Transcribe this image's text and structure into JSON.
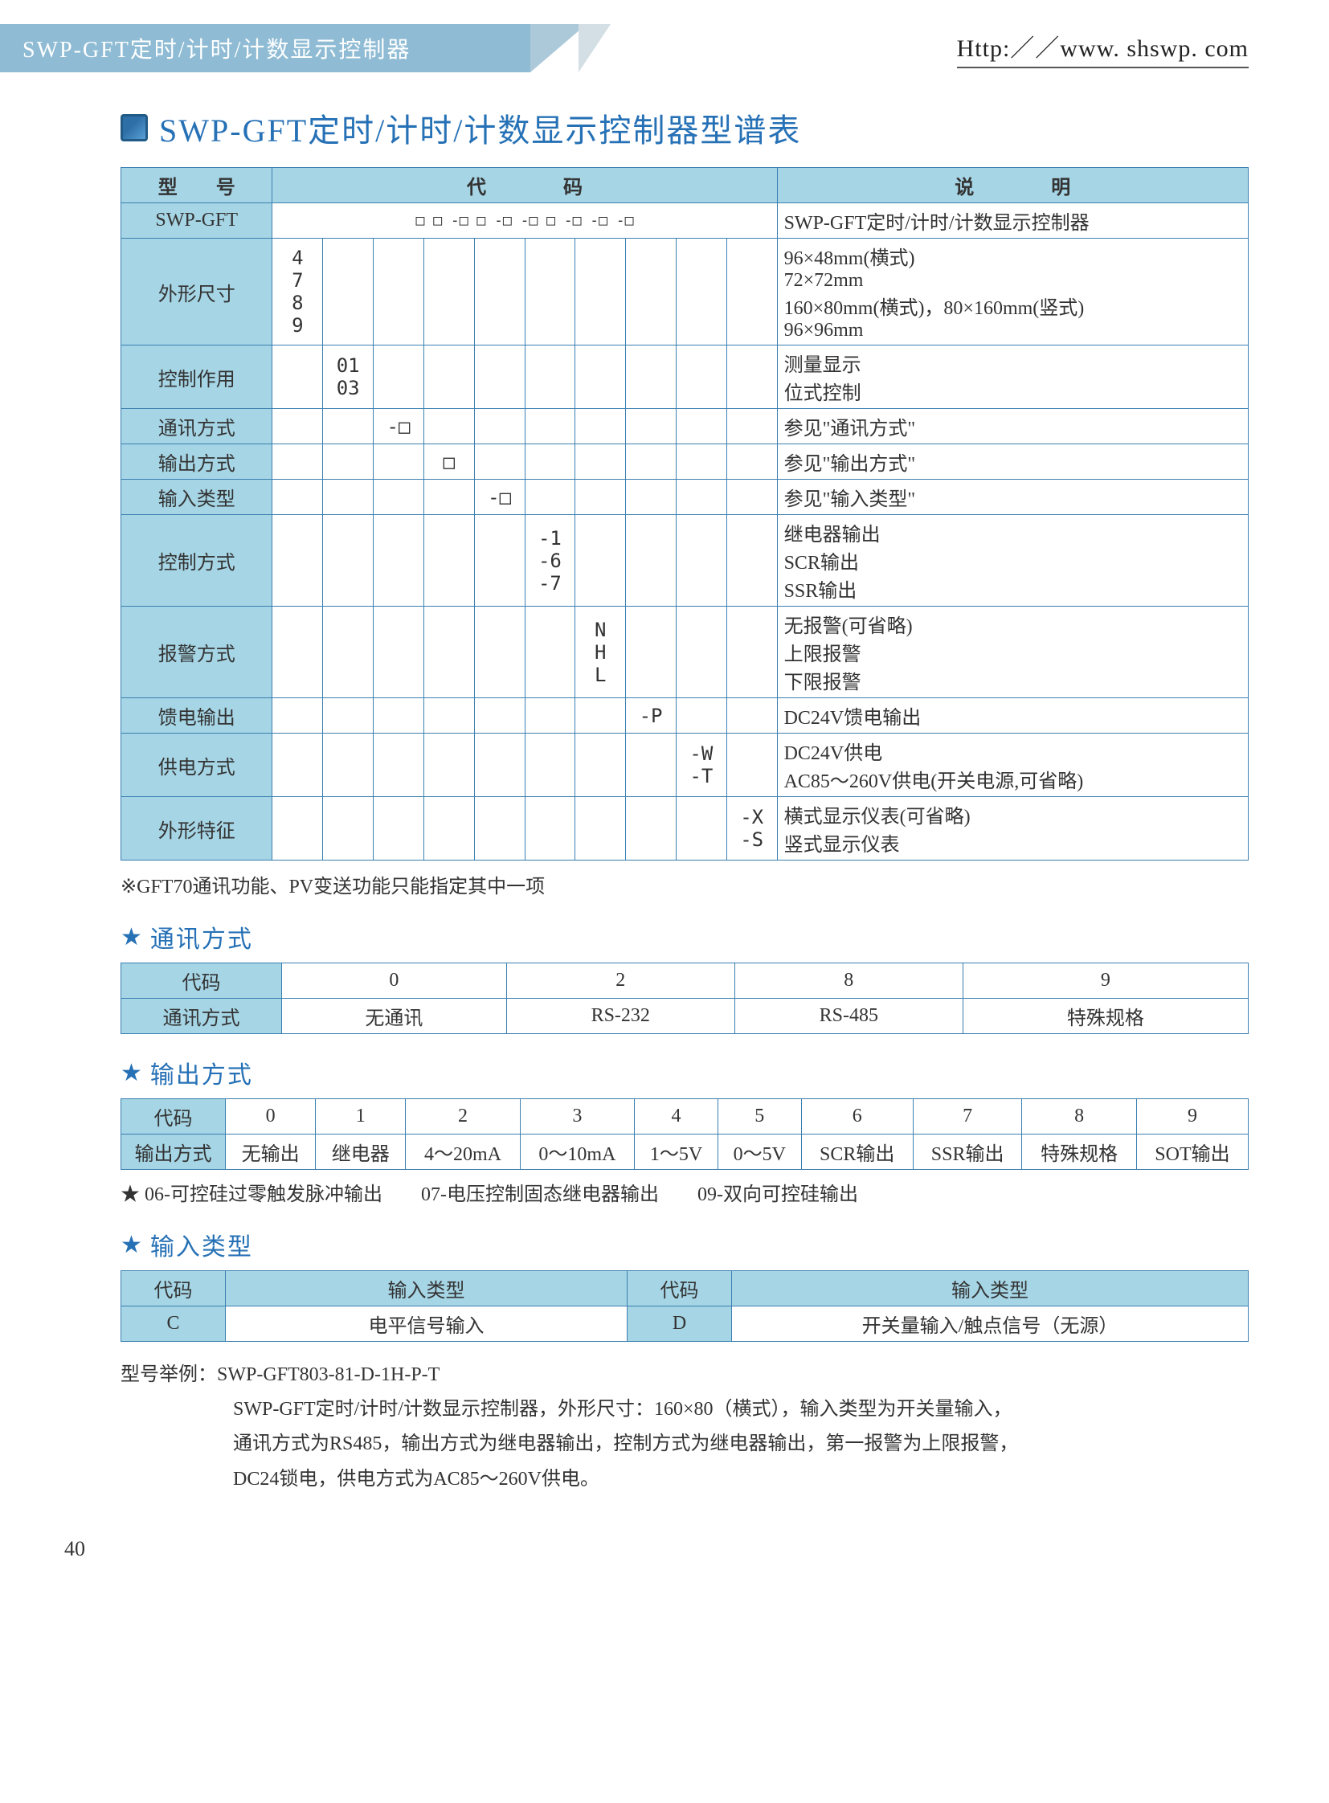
{
  "header": {
    "left_title": "SWP-GFT定时/计时/计数显示控制器",
    "url": "Http:／／www. shswp. com"
  },
  "title": "SWP-GFT定时/计时/计数显示控制器型谱表",
  "mainTable": {
    "headers": {
      "model": "型　　号",
      "code": "代　　　　码",
      "desc": "说　　　　明"
    },
    "model_row": {
      "label": "SWP-GFT",
      "markers": "□ □ -□ □ -□ -□ □ -□ -□ -□",
      "desc": "SWP-GFT定时/计时/计数显示控制器"
    },
    "rows": [
      {
        "label": "外形尺寸",
        "cols": [
          "4\n7\n8\n9",
          "",
          "",
          "",
          "",
          "",
          "",
          "",
          "",
          ""
        ],
        "desc": "96×48mm(横式)\n72×72mm\n160×80mm(横式)，80×160mm(竖式)\n96×96mm"
      },
      {
        "label": "控制作用",
        "cols": [
          "",
          "01\n03",
          "",
          "",
          "",
          "",
          "",
          "",
          "",
          ""
        ],
        "desc": "测量显示\n位式控制"
      },
      {
        "label": "通讯方式",
        "cols": [
          "",
          "",
          "-□",
          "",
          "",
          "",
          "",
          "",
          "",
          ""
        ],
        "desc": "参见\"通讯方式\""
      },
      {
        "label": "输出方式",
        "cols": [
          "",
          "",
          "",
          "□",
          "",
          "",
          "",
          "",
          "",
          ""
        ],
        "desc": "参见\"输出方式\""
      },
      {
        "label": "输入类型",
        "cols": [
          "",
          "",
          "",
          "",
          "-□",
          "",
          "",
          "",
          "",
          ""
        ],
        "desc": "参见\"输入类型\""
      },
      {
        "label": "控制方式",
        "cols": [
          "",
          "",
          "",
          "",
          "",
          "-1\n-6\n-7",
          "",
          "",
          "",
          ""
        ],
        "desc": "继电器输出\nSCR输出\nSSR输出"
      },
      {
        "label": "报警方式",
        "cols": [
          "",
          "",
          "",
          "",
          "",
          "",
          "N\nH\nL",
          "",
          "",
          ""
        ],
        "desc": "无报警(可省略)\n上限报警\n下限报警"
      },
      {
        "label": "馈电输出",
        "cols": [
          "",
          "",
          "",
          "",
          "",
          "",
          "",
          "-P",
          "",
          ""
        ],
        "desc": "DC24V馈电输出"
      },
      {
        "label": "供电方式",
        "cols": [
          "",
          "",
          "",
          "",
          "",
          "",
          "",
          "",
          "-W\n-T",
          ""
        ],
        "desc": "DC24V供电\nAC85～260V供电(开关电源,可省略)"
      },
      {
        "label": "外形特征",
        "cols": [
          "",
          "",
          "",
          "",
          "",
          "",
          "",
          "",
          "",
          "-X\n-S"
        ],
        "desc": "横式显示仪表(可省略)\n竖式显示仪表"
      }
    ]
  },
  "note1": "※GFT70通讯功能、PV变送功能只能指定其中一项",
  "comm": {
    "title": "通讯方式",
    "h1": "代码",
    "h2": "通讯方式",
    "codes": [
      "0",
      "2",
      "8",
      "9"
    ],
    "vals": [
      "无通讯",
      "RS-232",
      "RS-485",
      "特殊规格"
    ]
  },
  "output": {
    "title": "输出方式",
    "h1": "代码",
    "h2": "输出方式",
    "codes": [
      "0",
      "1",
      "2",
      "3",
      "4",
      "5",
      "6",
      "7",
      "8",
      "9"
    ],
    "vals": [
      "无输出",
      "继电器",
      "4～20mA",
      "0～10mA",
      "1～5V",
      "0～5V",
      "SCR输出",
      "SSR输出",
      "特殊规格",
      "SOT输出"
    ],
    "foot": "★ 06-可控硅过零触发脉冲输出　　07-电压控制固态继电器输出　　09-双向可控硅输出"
  },
  "input": {
    "title": "输入类型",
    "h1": "代码",
    "h2": "输入类型",
    "rows": [
      {
        "c": "C",
        "v": "电平信号输入"
      },
      {
        "c": "D",
        "v": "开关量输入/触点信号（无源）"
      }
    ]
  },
  "example": {
    "label": "型号举例：",
    "code": "SWP-GFT803-81-D-1H-P-T",
    "line1": "SWP-GFT定时/计时/计数显示控制器，外形尺寸：160×80（横式），输入类型为开关量输入，",
    "line2": "通讯方式为RS485，输出方式为继电器输出，控制方式为继电器输出，第一报警为上限报警，",
    "line3": "DC24锁电，供电方式为AC85～260V供电。"
  },
  "pagenum": "40"
}
